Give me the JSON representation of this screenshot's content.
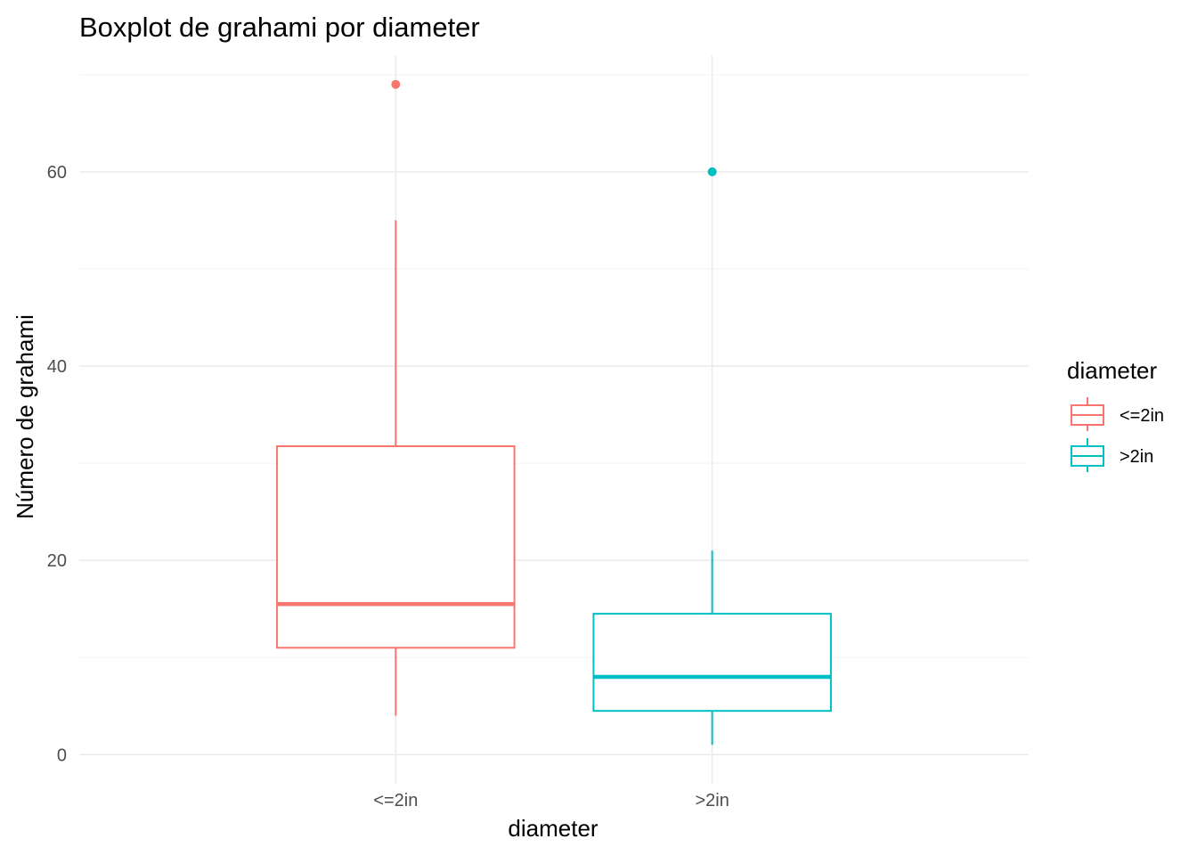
{
  "chart_data": {
    "type": "boxplot",
    "title": "Boxplot de grahami por diameter",
    "xlabel": "diameter",
    "ylabel": "Número de grahami",
    "categories": [
      "<=2in",
      ">2in"
    ],
    "ylim": [
      -3,
      72
    ],
    "yticks": [
      0,
      20,
      40,
      60
    ],
    "grid": true,
    "legend": {
      "title": "diameter",
      "placement": "right",
      "entries": [
        "<=2in",
        ">2in"
      ]
    },
    "colors": [
      "#F8766D",
      "#00BFC4"
    ],
    "boxes": [
      {
        "category": "<=2in",
        "whisker_low": 4,
        "q1": 11,
        "median": 15.5,
        "q3": 31.75,
        "whisker_high": 55,
        "outliers": [
          69
        ]
      },
      {
        "category": ">2in",
        "whisker_low": 1,
        "q1": 4.5,
        "median": 8,
        "q3": 14.5,
        "whisker_high": 21,
        "outliers": [
          60
        ]
      }
    ]
  }
}
